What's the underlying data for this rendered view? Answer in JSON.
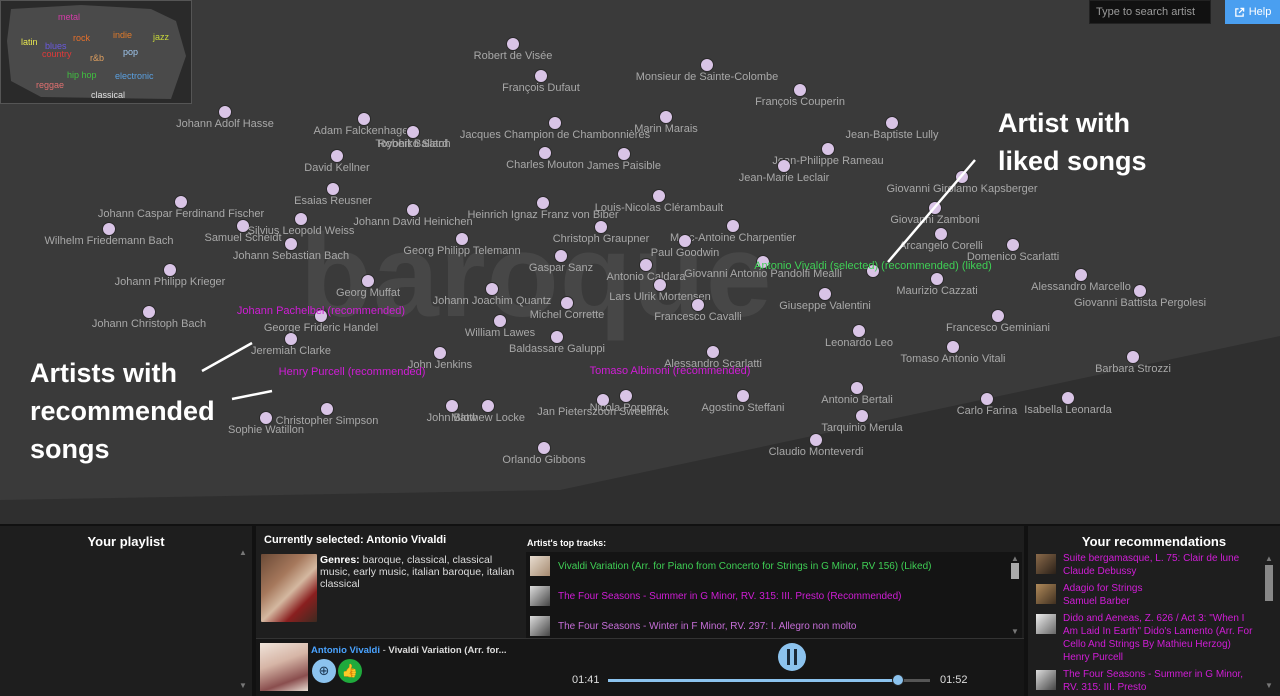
{
  "genre_map": {
    "watermark": "baroque",
    "minimap_genres": [
      {
        "name": "metal",
        "color": "#d43ca8"
      },
      {
        "name": "latin",
        "color": "#e8e850"
      },
      {
        "name": "indie",
        "color": "#e07a2a"
      },
      {
        "name": "jazz",
        "color": "#c8d83a"
      },
      {
        "name": "rock",
        "color": "#e8702a"
      },
      {
        "name": "blues",
        "color": "#6a5ae0"
      },
      {
        "name": "country",
        "color": "#e03a3a"
      },
      {
        "name": "r&b",
        "color": "#e0a060"
      },
      {
        "name": "pop",
        "color": "#a0c8f0"
      },
      {
        "name": "hip hop",
        "color": "#40c040"
      },
      {
        "name": "electronic",
        "color": "#5aa0e0"
      },
      {
        "name": "reggae",
        "color": "#e07070"
      },
      {
        "name": "classical",
        "color": "#e0e0e0"
      }
    ]
  },
  "search": {
    "placeholder": "Type to search artist"
  },
  "help": {
    "label": "Help",
    "icon": "external-link-icon"
  },
  "artists": [
    {
      "name": "Robert de Visée",
      "state": "normal"
    },
    {
      "name": "François Dufaut",
      "state": "normal"
    },
    {
      "name": "Monsieur de Sainte-Colombe",
      "state": "normal"
    },
    {
      "name": "François Couperin",
      "state": "normal"
    },
    {
      "name": "Johann Adolf Hasse",
      "state": "normal"
    },
    {
      "name": "Adam Falckenhagen",
      "state": "normal"
    },
    {
      "name": "Robert Ballard",
      "state": "normal"
    },
    {
      "name": "Toyohiko Satoh",
      "state": "normal"
    },
    {
      "name": "Jacques Champion de Chambonnières",
      "state": "normal"
    },
    {
      "name": "Marin Marais",
      "state": "normal"
    },
    {
      "name": "Jean-Baptiste Lully",
      "state": "normal"
    },
    {
      "name": "David Kellner",
      "state": "normal"
    },
    {
      "name": "Charles Mouton",
      "state": "normal"
    },
    {
      "name": "James Paisible",
      "state": "normal"
    },
    {
      "name": "Jean-Philippe Rameau",
      "state": "normal"
    },
    {
      "name": "Jean-Marie Leclair",
      "state": "normal"
    },
    {
      "name": "Giovanni Girolamo Kapsberger",
      "state": "normal"
    },
    {
      "name": "Esaias Reusner",
      "state": "normal"
    },
    {
      "name": "Johann Caspar Ferdinand Fischer",
      "state": "normal"
    },
    {
      "name": "Johann David Heinichen",
      "state": "normal"
    },
    {
      "name": "Heinrich Ignaz Franz von Biber",
      "state": "normal"
    },
    {
      "name": "Louis-Nicolas Clérambault",
      "state": "normal"
    },
    {
      "name": "Giovanni Zamboni",
      "state": "normal"
    },
    {
      "name": "Wilhelm Friedemann Bach",
      "state": "normal"
    },
    {
      "name": "Samuel Scheidt",
      "state": "normal"
    },
    {
      "name": "Silvius Leopold Weiss",
      "state": "normal"
    },
    {
      "name": "Christoph Graupner",
      "state": "normal"
    },
    {
      "name": "Marc-Antoine Charpentier",
      "state": "normal"
    },
    {
      "name": "Arcangelo Corelli",
      "state": "normal"
    },
    {
      "name": "Johann Sebastian Bach",
      "state": "normal"
    },
    {
      "name": "Georg Philipp Telemann",
      "state": "normal"
    },
    {
      "name": "Paul Goodwin",
      "state": "normal"
    },
    {
      "name": "Domenico Scarlatti",
      "state": "normal"
    },
    {
      "name": "Gaspar Sanz",
      "state": "normal"
    },
    {
      "name": "Antonio Caldara",
      "state": "normal"
    },
    {
      "name": "Giovanni Antonio Pandolfi Mealli",
      "state": "normal"
    },
    {
      "name": "Johann Philipp Krieger",
      "state": "normal"
    },
    {
      "name": "Georg Muffat",
      "state": "normal"
    },
    {
      "name": "Maurizio Cazzati",
      "state": "normal"
    },
    {
      "name": "Alessandro Marcello",
      "state": "normal"
    },
    {
      "name": "Lars Ulrik Mortensen",
      "state": "normal"
    },
    {
      "name": "Johann Joachim Quantz",
      "state": "normal"
    },
    {
      "name": "Giuseppe Valentini",
      "state": "normal"
    },
    {
      "name": "Giovanni Battista Pergolesi",
      "state": "normal"
    },
    {
      "name": "Michel Corrette",
      "state": "normal"
    },
    {
      "name": "Johann Christoph Bach",
      "state": "normal"
    },
    {
      "name": "Francesco Cavalli",
      "state": "normal"
    },
    {
      "name": "Francesco Geminiani",
      "state": "normal"
    },
    {
      "name": "William Lawes",
      "state": "normal"
    },
    {
      "name": "George Frideric Handel",
      "state": "normal"
    },
    {
      "name": "Leonardo Leo",
      "state": "normal"
    },
    {
      "name": "Baldassare Galuppi",
      "state": "normal"
    },
    {
      "name": "Jeremiah Clarke",
      "state": "normal"
    },
    {
      "name": "Tomaso Antonio Vitali",
      "state": "normal"
    },
    {
      "name": "John Jenkins",
      "state": "normal"
    },
    {
      "name": "Alessandro Scarlatti",
      "state": "normal"
    },
    {
      "name": "Barbara Strozzi",
      "state": "normal"
    },
    {
      "name": "Antonio Bertali",
      "state": "normal"
    },
    {
      "name": "Christopher Simpson",
      "state": "normal"
    },
    {
      "name": "John Blow",
      "state": "normal"
    },
    {
      "name": "Matthew Locke",
      "state": "normal"
    },
    {
      "name": "Jan Pieterszoon Sweelinck",
      "state": "normal"
    },
    {
      "name": "Nicola Porpora",
      "state": "normal"
    },
    {
      "name": "Agostino Steffani",
      "state": "normal"
    },
    {
      "name": "Carlo Farina",
      "state": "normal"
    },
    {
      "name": "Isabella Leonarda",
      "state": "normal"
    },
    {
      "name": "Sophie Watillon",
      "state": "normal"
    },
    {
      "name": "Tarquinio Merula",
      "state": "normal"
    },
    {
      "name": "Claudio Monteverdi",
      "state": "normal"
    },
    {
      "name": "Orlando Gibbons",
      "state": "normal"
    },
    {
      "name": "Antonio Vivaldi (selected) (recommended) (liked)",
      "state": "liked"
    },
    {
      "name": "Johann Pachelbel (recommended)",
      "state": "rec"
    },
    {
      "name": "Henry Purcell (recommended)",
      "state": "rec"
    },
    {
      "name": "Tomaso Albinoni (recommended)",
      "state": "rec"
    }
  ],
  "annotations": {
    "liked": [
      "Artist with",
      "liked songs"
    ],
    "recommended": [
      "Artists with",
      "recommended",
      "songs"
    ]
  },
  "playlist": {
    "title": "Your playlist"
  },
  "selected": {
    "title": "Currently selected: Antonio Vivaldi",
    "genres_label": "Genres:",
    "genres": "baroque, classical, classical music, early music, italian baroque, italian classical",
    "tracks_title": "Artist's top tracks:",
    "tracks": [
      {
        "name": "Vivaldi Variation (Arr. for Piano from Concerto for Strings in G Minor, RV 156) (Liked)",
        "state": "liked"
      },
      {
        "name": "The Four Seasons - Summer in G Minor, RV. 315: III. Presto (Recommended)",
        "state": "rec"
      },
      {
        "name": "The Four Seasons - Winter in F Minor, RV. 297: I. Allegro non molto",
        "state": "plain"
      }
    ]
  },
  "player": {
    "artist": "Antonio Vivaldi",
    "separator": " - ",
    "track": "Vivaldi Variation (Arr. for...",
    "elapsed": "01:41",
    "total": "01:52",
    "progress": 0.9
  },
  "recommendations": {
    "title": "Your recommendations",
    "items": [
      {
        "title": "Suite bergamasque, L. 75: Clair de lune",
        "artist": "Claude Debussy"
      },
      {
        "title": "Adagio for Strings",
        "artist": "Samuel Barber"
      },
      {
        "title": "Dido and Aeneas, Z. 626 / Act 3: \"When I Am Laid In Earth\" Dido's Lamento (Arr. For Cello And Strings By Mathieu Herzog)",
        "artist": "Henry Purcell"
      },
      {
        "title": "The Four Seasons - Summer in G Minor, RV. 315: III. Presto",
        "artist": ""
      }
    ]
  }
}
